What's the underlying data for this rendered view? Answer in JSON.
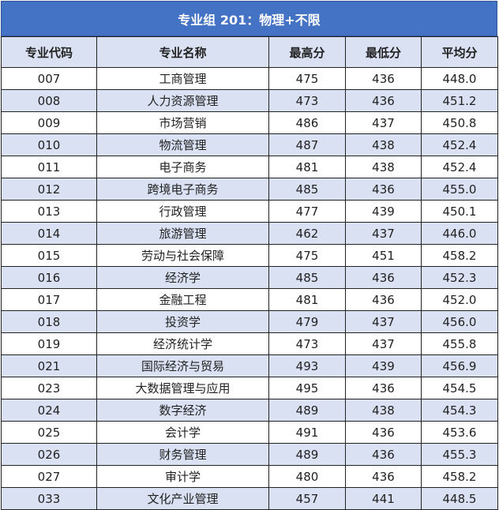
{
  "title": "专业组 201：物理+不限",
  "colors": {
    "title_bg": "#4472C4",
    "stripe": "#D9E1F2"
  },
  "headers": [
    "专业代码",
    "专业名称",
    "最高分",
    "最低分",
    "平均分"
  ],
  "rows": [
    [
      "007",
      "工商管理",
      "475",
      "436",
      "448.0"
    ],
    [
      "008",
      "人力资源管理",
      "473",
      "436",
      "451.2"
    ],
    [
      "009",
      "市场营销",
      "486",
      "437",
      "450.8"
    ],
    [
      "010",
      "物流管理",
      "487",
      "438",
      "452.4"
    ],
    [
      "011",
      "电子商务",
      "481",
      "438",
      "452.4"
    ],
    [
      "012",
      "跨境电子商务",
      "485",
      "436",
      "455.0"
    ],
    [
      "013",
      "行政管理",
      "477",
      "439",
      "450.1"
    ],
    [
      "014",
      "旅游管理",
      "462",
      "437",
      "446.0"
    ],
    [
      "015",
      "劳动与社会保障",
      "475",
      "451",
      "458.2"
    ],
    [
      "016",
      "经济学",
      "485",
      "436",
      "452.3"
    ],
    [
      "017",
      "金融工程",
      "481",
      "436",
      "452.0"
    ],
    [
      "018",
      "投资学",
      "479",
      "437",
      "456.0"
    ],
    [
      "019",
      "经济统计学",
      "473",
      "437",
      "455.8"
    ],
    [
      "021",
      "国际经济与贸易",
      "493",
      "439",
      "456.9"
    ],
    [
      "023",
      "大数据管理与应用",
      "495",
      "436",
      "454.5"
    ],
    [
      "024",
      "数字经济",
      "489",
      "438",
      "454.3"
    ],
    [
      "025",
      "会计学",
      "491",
      "436",
      "453.6"
    ],
    [
      "026",
      "财务管理",
      "489",
      "436",
      "455.3"
    ],
    [
      "027",
      "审计学",
      "480",
      "436",
      "458.2"
    ],
    [
      "033",
      "文化产业管理",
      "457",
      "441",
      "448.5"
    ]
  ]
}
